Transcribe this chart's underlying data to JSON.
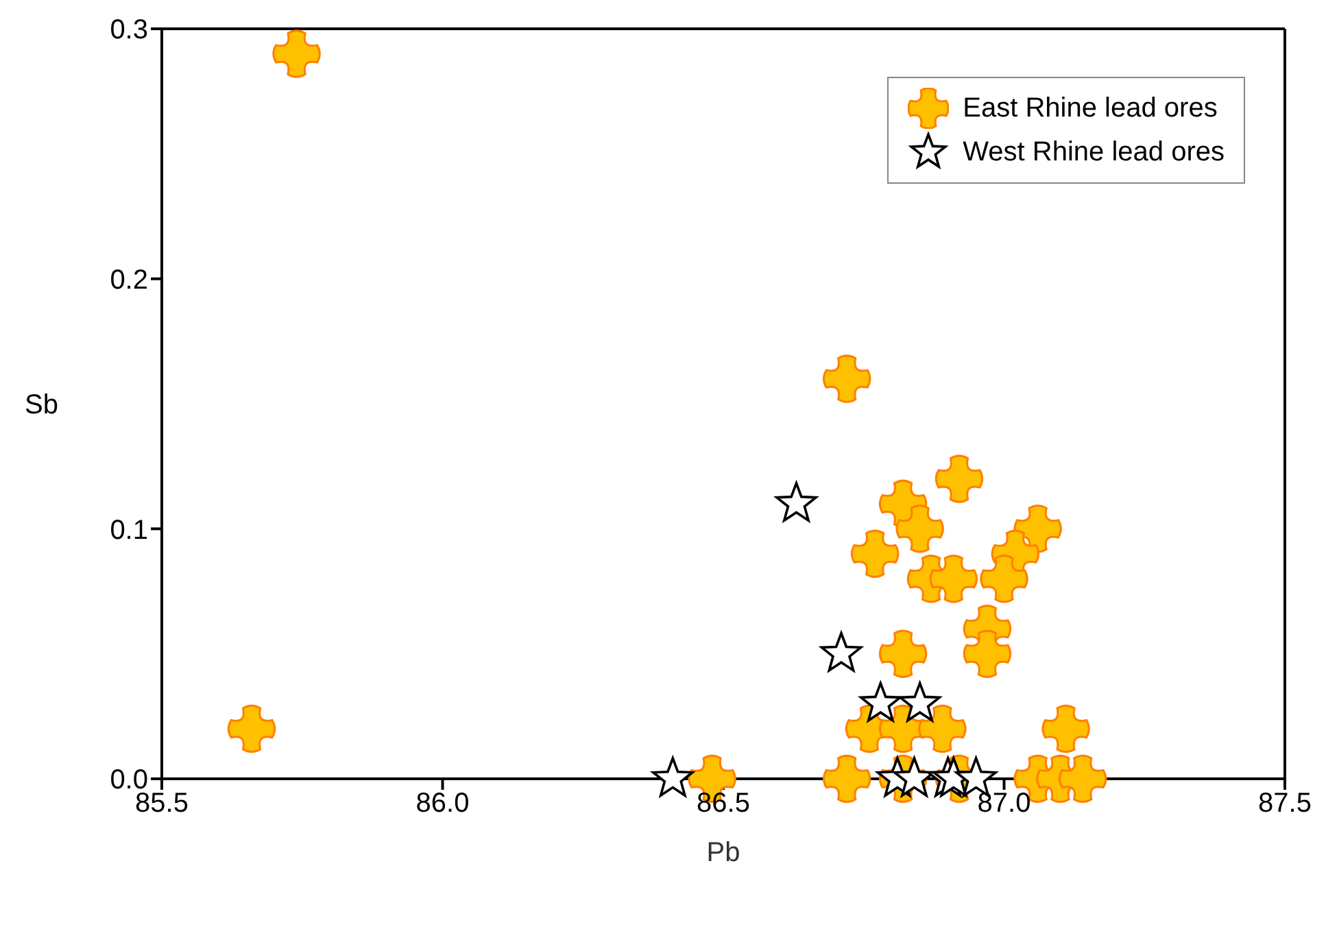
{
  "chart_data": {
    "type": "scatter",
    "xlabel": "Pb",
    "ylabel": "Sb",
    "xlim": [
      85.5,
      87.5
    ],
    "xticks": [
      {
        "value": 85.5,
        "label": "85.5"
      },
      {
        "value": 86,
        "label": "86.0"
      },
      {
        "value": 86.5,
        "label": "86.5"
      },
      {
        "value": 87,
        "label": "87.0"
      },
      {
        "value": 87.5,
        "label": "87.5"
      }
    ],
    "ylim": [
      0,
      0.3
    ],
    "yticks": [
      {
        "value": 0,
        "label": "0.0"
      },
      {
        "value": 0.1,
        "label": "0.1"
      },
      {
        "value": 0.2,
        "label": "0.2"
      },
      {
        "value": 0.3,
        "label": "0.3"
      }
    ],
    "grid": false,
    "legend": "top right",
    "series": [
      {
        "name": "East Rhine lead ores",
        "color": "#ffc000",
        "marker": "cross",
        "x": [
          85.74,
          85.66,
          86.48,
          86.72,
          86.92,
          86.82,
          86.85,
          87.06,
          87.02,
          86.77,
          86.87,
          86.91,
          87.0,
          86.97,
          86.97,
          86.82,
          86.76,
          86.82,
          86.89,
          87.11,
          86.72,
          86.82,
          86.92,
          87.06,
          87.1,
          87.14
        ],
        "values": [
          0.29,
          0.02,
          0,
          0.16,
          0.12,
          0.11,
          0.1,
          0.1,
          0.09,
          0.09,
          0.08,
          0.08,
          0.08,
          0.06,
          0.05,
          0.05,
          0.02,
          0.02,
          0.02,
          0.02,
          0,
          0,
          0,
          0,
          0,
          0
        ]
      },
      {
        "name": "West Rhine lead ores",
        "color": "#ffffff",
        "marker": "star",
        "x": [
          86.41,
          86.63,
          86.71,
          86.78,
          86.85,
          86.81,
          86.84,
          86.9,
          86.91,
          86.95
        ],
        "values": [
          0,
          0.11,
          0.05,
          0.03,
          0.03,
          0,
          0,
          0,
          0,
          0
        ]
      }
    ]
  }
}
